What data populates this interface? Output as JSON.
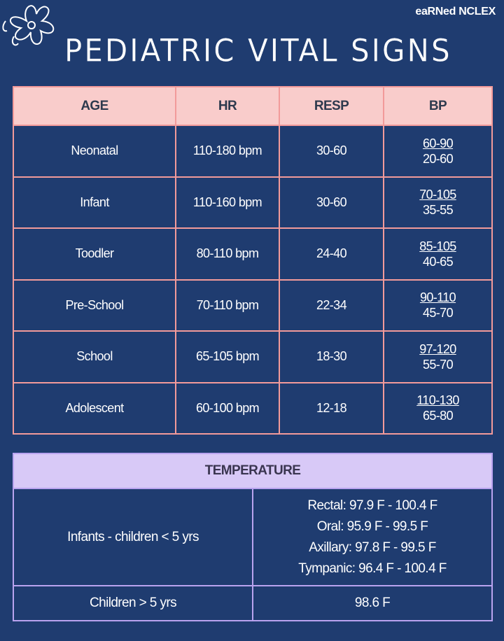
{
  "header": {
    "brand": "eaRNed NCLEX",
    "title": "PEDIATRIC VITAL SIGNS"
  },
  "vitals": {
    "columns": [
      "AGE",
      "HR",
      "RESP",
      "BP"
    ],
    "rows": [
      {
        "age": "Neonatal",
        "hr": "110-180 bpm",
        "resp": "30-60",
        "bp": [
          "60-90",
          "20-60"
        ]
      },
      {
        "age": "Infant",
        "hr": "110-160 bpm",
        "resp": "30-60",
        "bp": [
          "70-105",
          "35-55"
        ]
      },
      {
        "age": "Toodler",
        "hr": "80-110 bpm",
        "resp": "24-40",
        "bp": [
          "85-105",
          "40-65"
        ]
      },
      {
        "age": "Pre-School",
        "hr": "70-110 bpm",
        "resp": "22-34",
        "bp": [
          "90-110",
          "45-70"
        ]
      },
      {
        "age": "School",
        "hr": "65-105 bpm",
        "resp": "18-30",
        "bp": [
          "97-120",
          "55-70"
        ]
      },
      {
        "age": "Adolescent",
        "hr": "60-100 bpm",
        "resp": "12-18",
        "bp": [
          "110-130",
          "65-80"
        ]
      }
    ]
  },
  "temperature": {
    "title": "TEMPERATURE",
    "rows": [
      {
        "group": "Infants - children < 5 yrs",
        "values": [
          "Rectal: 97.9 F - 100.4 F",
          "Oral: 95.9 F - 99.5 F",
          "Axillary: 97.8 F - 99.5 F",
          "Tympanic: 96.4 F - 100.4 F"
        ]
      },
      {
        "group": "Children > 5 yrs",
        "values": [
          "98.6 F"
        ]
      }
    ]
  }
}
